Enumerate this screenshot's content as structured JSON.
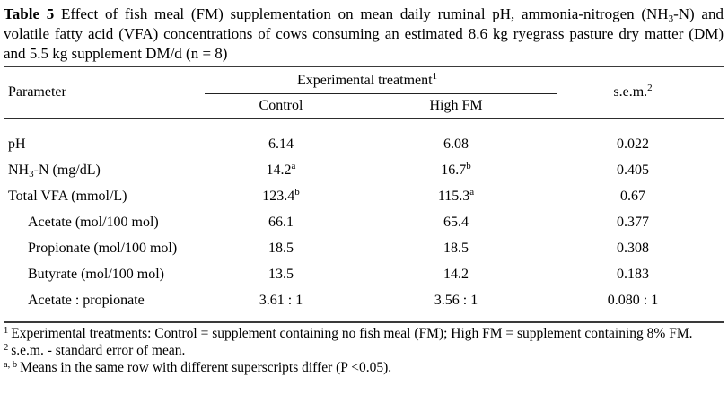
{
  "page": {
    "background_color": "#ffffff",
    "text_color": "#000000",
    "rule_color": "#3a3a3a"
  },
  "caption": {
    "label": "Table 5",
    "part1": " Effect of fish meal (FM) supplementation on mean daily ruminal pH, ammonia-nitrogen (NH",
    "sub": "3",
    "part2": "-N) and volatile fatty acid (VFA) concentrations of cows consuming an estimated 8.6 kg ryegrass pasture dry matter (DM) and 5.5 kg supplement DM/d (n = 8)"
  },
  "table": {
    "header": {
      "parameter": "Parameter",
      "spanner": "Experimental treatment",
      "spanner_sup": "1",
      "col_control": "Control",
      "col_highfm": "High FM",
      "sem": "s.e.m.",
      "sem_sup": "2"
    },
    "rows": [
      {
        "param_pre": "pH",
        "control_v": "6.14",
        "highfm_v": "6.08",
        "sem_v": "0.022"
      },
      {
        "param_pre": "NH",
        "param_sub": "3",
        "param_post": "-N (mg/dL)",
        "control_v": "14.2",
        "control_sup": "a",
        "highfm_v": "16.7",
        "highfm_sup": "b",
        "sem_v": "0.405"
      },
      {
        "param_pre": "Total VFA (mmol/L)",
        "control_v": "123.4",
        "control_sup": "b",
        "highfm_v": "115.3",
        "highfm_sup": "a",
        "sem_v": "0.67"
      },
      {
        "param_pre": "Acetate (mol/100 mol)",
        "control_v": "66.1",
        "highfm_v": "65.4",
        "sem_v": "0.377"
      },
      {
        "param_pre": "Propionate (mol/100 mol)",
        "control_v": "18.5",
        "highfm_v": "18.5",
        "sem_v": "0.308"
      },
      {
        "param_pre": "Butyrate (mol/100 mol)",
        "control_v": "13.5",
        "highfm_v": "14.2",
        "sem_v": "0.183"
      },
      {
        "param_pre": "Acetate :  propionate",
        "control_v": "3.61 : 1",
        "highfm_v": "3.56 : 1",
        "sem_v": "0.080 : 1"
      }
    ]
  },
  "footnotes": [
    {
      "marker": "1",
      "text": "Experimental treatments: Control = supplement containing no fish meal (FM); High FM = supplement containing 8% FM."
    },
    {
      "marker": "2",
      "text": "s.e.m. - standard error of mean."
    },
    {
      "marker": "a, b",
      "text": "Means in the same row with different superscripts differ (P <0.05)."
    }
  ]
}
